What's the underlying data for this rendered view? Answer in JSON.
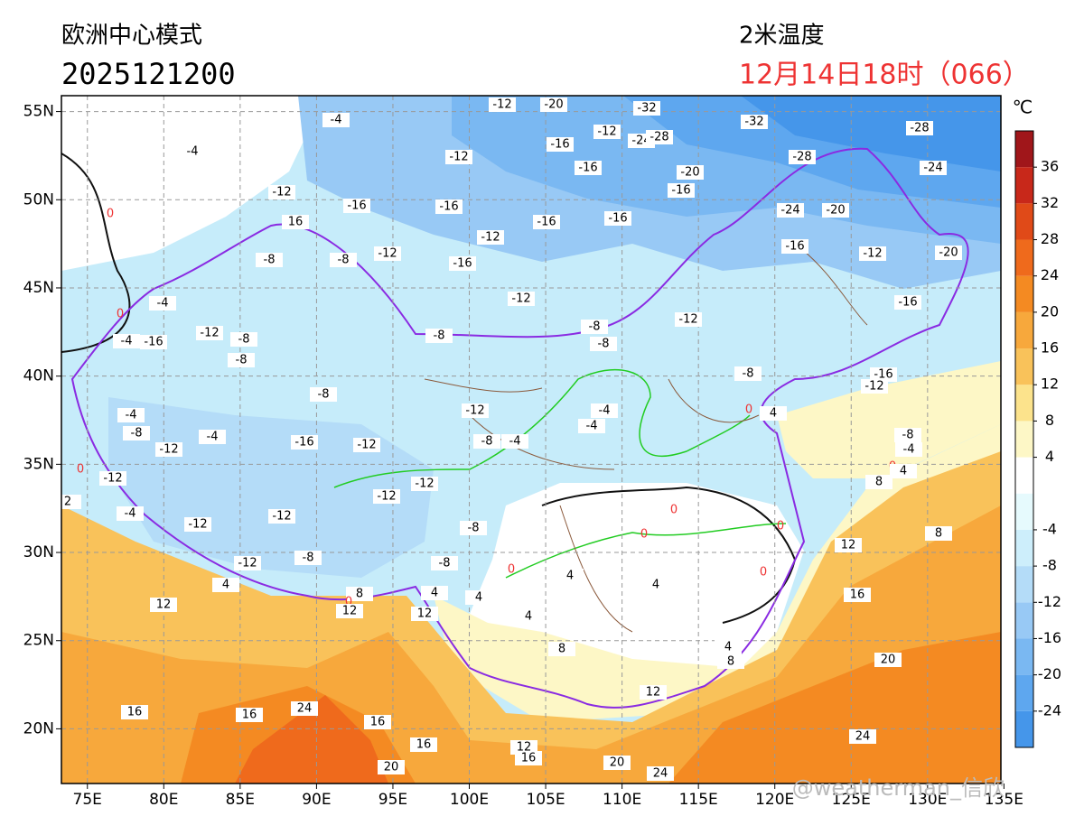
{
  "header": {
    "model": "欧洲中心模式",
    "init_time": "2025121200",
    "variable": "2米温度",
    "valid_time": "12月14日18时（066）"
  },
  "chart_data": {
    "type": "contour-map",
    "xlim": [
      73.3,
      134.8
    ],
    "ylim": [
      16.9,
      55.9
    ],
    "xticks": [
      {
        "value": 75,
        "label": "75E"
      },
      {
        "value": 80,
        "label": "80E"
      },
      {
        "value": 85,
        "label": "85E"
      },
      {
        "value": 90,
        "label": "90E"
      },
      {
        "value": 95,
        "label": "95E"
      },
      {
        "value": 100,
        "label": "100E"
      },
      {
        "value": 105,
        "label": "105E"
      },
      {
        "value": 110,
        "label": "110E"
      },
      {
        "value": 115,
        "label": "115E"
      },
      {
        "value": 120,
        "label": "120E"
      },
      {
        "value": 125,
        "label": "125E"
      },
      {
        "value": 130,
        "label": "130E"
      },
      {
        "value": 135,
        "label": "135E"
      }
    ],
    "yticks": [
      {
        "value": 20,
        "label": "20N"
      },
      {
        "value": 25,
        "label": "25N"
      },
      {
        "value": 30,
        "label": "30N"
      },
      {
        "value": 35,
        "label": "35N"
      },
      {
        "value": 40,
        "label": "40N"
      },
      {
        "value": 45,
        "label": "45N"
      },
      {
        "value": 50,
        "label": "50N"
      },
      {
        "value": 55,
        "label": "55N"
      }
    ],
    "grid": true,
    "colorbar": {
      "unit": "℃",
      "levels": [
        -28,
        -24,
        -20,
        -16,
        -12,
        -8,
        -4,
        0,
        4,
        8,
        12,
        16,
        20,
        24,
        28,
        32,
        36,
        40
      ],
      "colors": [
        "#4596ea",
        "#5ea7ef",
        "#7ab8f2",
        "#98c9f5",
        "#b4dcf8",
        "#cdeefb",
        "#e6fafd",
        "#ffffff",
        "#fdf7c6",
        "#fce38c",
        "#f9c25a",
        "#f7a83c",
        "#f48a22",
        "#ef6a1c",
        "#e04a18",
        "#c8281a",
        "#a0161a"
      ],
      "ticks": [
        36,
        32,
        28,
        24,
        20,
        16,
        12,
        8,
        4,
        -4,
        -8,
        -12,
        -16,
        -20,
        -24
      ]
    },
    "zero_label_color": "#ee3333",
    "contour_labels": [
      -4,
      -4,
      -12,
      -20,
      -32,
      -32,
      -28,
      -16,
      -12,
      -24,
      -28,
      -12,
      -16,
      -20,
      -16,
      -28,
      -24,
      -12,
      -16,
      -16,
      -16,
      -16,
      -24,
      -20,
      -12,
      -16,
      -12,
      -8,
      -8,
      16,
      0,
      -16,
      -12,
      -20,
      -4,
      0,
      -12,
      -16,
      -12,
      -8,
      -8,
      -8,
      -12,
      -8,
      -16,
      -4,
      -8,
      -8,
      -8,
      -16,
      -12,
      -12,
      -4,
      -4,
      -4,
      -8,
      -4,
      -12,
      -16,
      -12,
      -8,
      -4,
      4,
      0,
      -8,
      -4,
      0,
      4,
      8,
      0,
      -12,
      -12,
      -12,
      2,
      -4,
      -12,
      -12,
      0,
      0,
      8,
      -8,
      12,
      0,
      -8,
      -12,
      -8,
      0,
      0,
      4,
      4,
      4,
      8,
      0,
      4,
      12,
      4,
      16,
      12,
      12,
      4,
      8,
      4,
      8,
      20,
      12,
      24,
      16,
      16,
      16,
      24,
      16,
      12,
      16,
      20,
      24,
      20
    ]
  },
  "watermark": "@weatherman_信欣"
}
